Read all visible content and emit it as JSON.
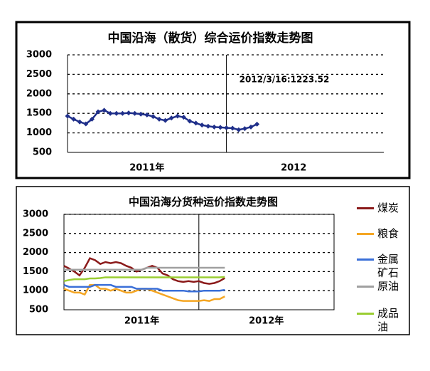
{
  "chart_data": [
    {
      "type": "line",
      "title": "中国沿海（散货）综合运价指数走势图",
      "annotation": "2012/3/16:1223.52",
      "categories": [
        null,
        null,
        null,
        null,
        null,
        null,
        null,
        null,
        null,
        null,
        null,
        null,
        null,
        "2011年",
        null,
        null,
        null,
        null,
        null,
        null,
        null,
        null,
        null,
        null,
        null,
        null,
        null,
        null,
        null,
        null,
        null,
        null,
        null,
        null,
        null,
        null,
        null,
        "2012",
        null,
        null,
        null,
        null,
        null,
        null,
        null,
        null,
        null,
        null,
        null,
        null,
        null,
        null
      ],
      "series": [
        {
          "name": "综合运价指数",
          "color": "#1f2f8a",
          "marker": "diamond",
          "values": [
            1430,
            1350,
            1280,
            1230,
            1350,
            1540,
            1580,
            1500,
            1500,
            1500,
            1510,
            1500,
            1480,
            1460,
            1420,
            1350,
            1320,
            1380,
            1430,
            1400,
            1300,
            1250,
            1200,
            1170,
            1150,
            1140,
            1130,
            1120,
            1080,
            1110,
            1150,
            1223.52,
            null,
            null,
            null,
            null,
            null,
            null,
            null,
            null,
            null,
            null,
            null,
            null,
            null,
            null,
            null,
            null,
            null,
            null,
            null,
            null
          ]
        }
      ],
      "ylim": [
        500,
        3000
      ],
      "yticks": [
        500,
        1000,
        1500,
        2000,
        2500,
        3000
      ],
      "grid": true
    },
    {
      "type": "line",
      "title": "中国沿海分货种运价指数走势图",
      "categories": [
        null,
        null,
        null,
        null,
        null,
        null,
        null,
        null,
        null,
        null,
        null,
        null,
        null,
        null,
        null,
        "2011年",
        null,
        null,
        null,
        null,
        null,
        null,
        null,
        null,
        null,
        null,
        null,
        null,
        null,
        null,
        null,
        null,
        null,
        null,
        null,
        null,
        null,
        null,
        null,
        "2012年",
        null,
        null,
        null,
        null,
        null,
        null,
        null,
        null,
        null,
        null,
        null,
        null
      ],
      "series": [
        {
          "name": "煤炭",
          "color": "#8b1a1a",
          "values": [
            1650,
            1580,
            1500,
            1400,
            1600,
            1850,
            1800,
            1700,
            1750,
            1720,
            1750,
            1720,
            1650,
            1600,
            1500,
            1550,
            1600,
            1650,
            1600,
            1450,
            1400,
            1300,
            1250,
            1230,
            1250,
            1230,
            1250,
            1200,
            1180,
            1200,
            1250,
            1330,
            null,
            null,
            null,
            null,
            null,
            null,
            null,
            null,
            null,
            null,
            null,
            null,
            null,
            null,
            null,
            null,
            null,
            null,
            null,
            null
          ]
        },
        {
          "name": "粮食",
          "color": "#f5a623",
          "values": [
            1050,
            1000,
            950,
            950,
            900,
            1150,
            1150,
            1050,
            1050,
            1000,
            1050,
            1000,
            950,
            950,
            1000,
            1050,
            1050,
            1000,
            950,
            900,
            850,
            800,
            750,
            730,
            730,
            730,
            730,
            750,
            730,
            780,
            780,
            850,
            null,
            null,
            null,
            null,
            null,
            null,
            null,
            null,
            null,
            null,
            null,
            null,
            null,
            null,
            null,
            null,
            null,
            null,
            null,
            null
          ]
        },
        {
          "name": "金属矿石",
          "color": "#3a6fd8",
          "values": [
            1150,
            1100,
            1100,
            1100,
            1100,
            1100,
            1150,
            1150,
            1150,
            1150,
            1100,
            1100,
            1100,
            1100,
            1050,
            1050,
            1050,
            1050,
            1050,
            1000,
            1000,
            1000,
            1000,
            1000,
            980,
            980,
            980,
            1000,
            1000,
            1000,
            1000,
            1020,
            null,
            null,
            null,
            null,
            null,
            null,
            null,
            null,
            null,
            null,
            null,
            null,
            null,
            null,
            null,
            null,
            null,
            null,
            null,
            null
          ]
        },
        {
          "name": "原油",
          "color": "#a0a0a0",
          "values": [
            1550,
            1550,
            1550,
            1550,
            1550,
            1550,
            1550,
            1550,
            1550,
            1550,
            1550,
            1550,
            1550,
            1550,
            1550,
            1550,
            1600,
            1600,
            1600,
            1600,
            1600,
            1600,
            1600,
            1600,
            1600,
            1600,
            1600,
            1600,
            1600,
            1600,
            1600,
            1600,
            null,
            null,
            null,
            null,
            null,
            null,
            null,
            null,
            null,
            null,
            null,
            null,
            null,
            null,
            null,
            null,
            null,
            null,
            null,
            null
          ]
        },
        {
          "name": "成品油",
          "color": "#9acd32",
          "values": [
            1250,
            1280,
            1300,
            1300,
            1300,
            1320,
            1320,
            1330,
            1350,
            1350,
            1350,
            1350,
            1350,
            1350,
            1350,
            1350,
            1350,
            1350,
            1350,
            1350,
            1350,
            1350,
            1350,
            1350,
            1350,
            1350,
            1350,
            1350,
            1350,
            1350,
            1350,
            1360,
            null,
            null,
            null,
            null,
            null,
            null,
            null,
            null,
            null,
            null,
            null,
            null,
            null,
            null,
            null,
            null,
            null,
            null,
            null,
            null
          ]
        }
      ],
      "ylim": [
        500,
        3000
      ],
      "yticks": [
        500,
        1000,
        1500,
        2000,
        2500,
        3000
      ],
      "grid": true
    }
  ]
}
